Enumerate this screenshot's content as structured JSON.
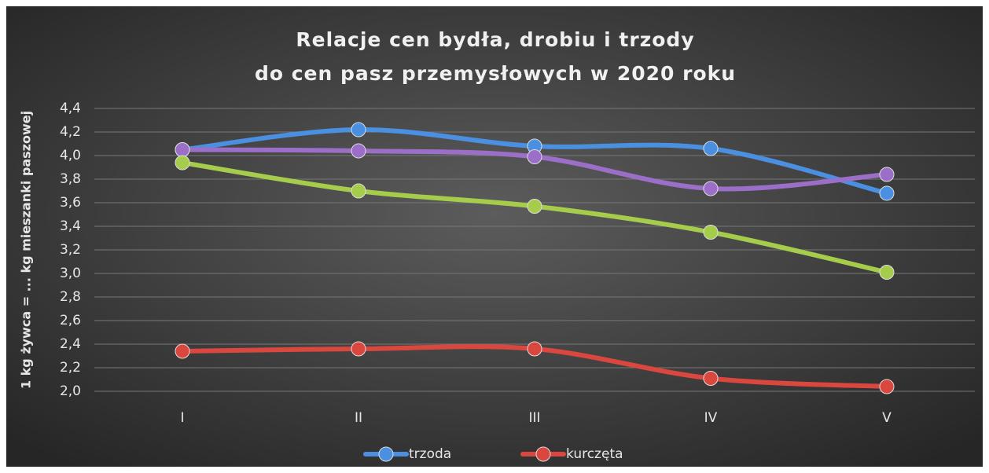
{
  "chart_data": {
    "type": "line",
    "title": [
      "Relacje cen bydła, drobiu i trzody",
      "do cen pasz przemysłowych w 2020 roku"
    ],
    "y_label": "1 kg żywca = ... kg mieszanki paszowej",
    "categories": [
      "I",
      "II",
      "III",
      "IV",
      "V"
    ],
    "series": [
      {
        "name": "trzoda",
        "color": "#4a8fe0",
        "values": [
          4.05,
          4.22,
          4.08,
          4.06,
          3.68
        ]
      },
      {
        "color": "#9b6fc8",
        "values": [
          4.05,
          4.04,
          3.99,
          3.72,
          3.84
        ]
      },
      {
        "color": "#a6cc4c",
        "values": [
          3.94,
          3.7,
          3.57,
          3.35,
          3.01
        ]
      },
      {
        "name": "kurczęta",
        "color": "#d9473f",
        "values": [
          2.34,
          2.36,
          2.36,
          2.11,
          2.04
        ]
      }
    ],
    "ylim": [
      2.0,
      4.4
    ],
    "yticks": [
      {
        "value": 2.0,
        "label": "2,0"
      },
      {
        "value": 2.2,
        "label": "2,2"
      },
      {
        "value": 2.4,
        "label": "2,4"
      },
      {
        "value": 2.6,
        "label": "2,6"
      },
      {
        "value": 2.8,
        "label": "2,8"
      },
      {
        "value": 3.0,
        "label": "3,0"
      },
      {
        "value": 3.2,
        "label": "3,2"
      },
      {
        "value": 3.4,
        "label": "3,4"
      },
      {
        "value": 3.6,
        "label": "3,6"
      },
      {
        "value": 3.8,
        "label": "3,8"
      },
      {
        "value": 4.0,
        "label": "4,0"
      },
      {
        "value": 4.2,
        "label": "4,2"
      },
      {
        "value": 4.4,
        "label": "4,4"
      }
    ],
    "grid": true,
    "legend": "bottom"
  }
}
